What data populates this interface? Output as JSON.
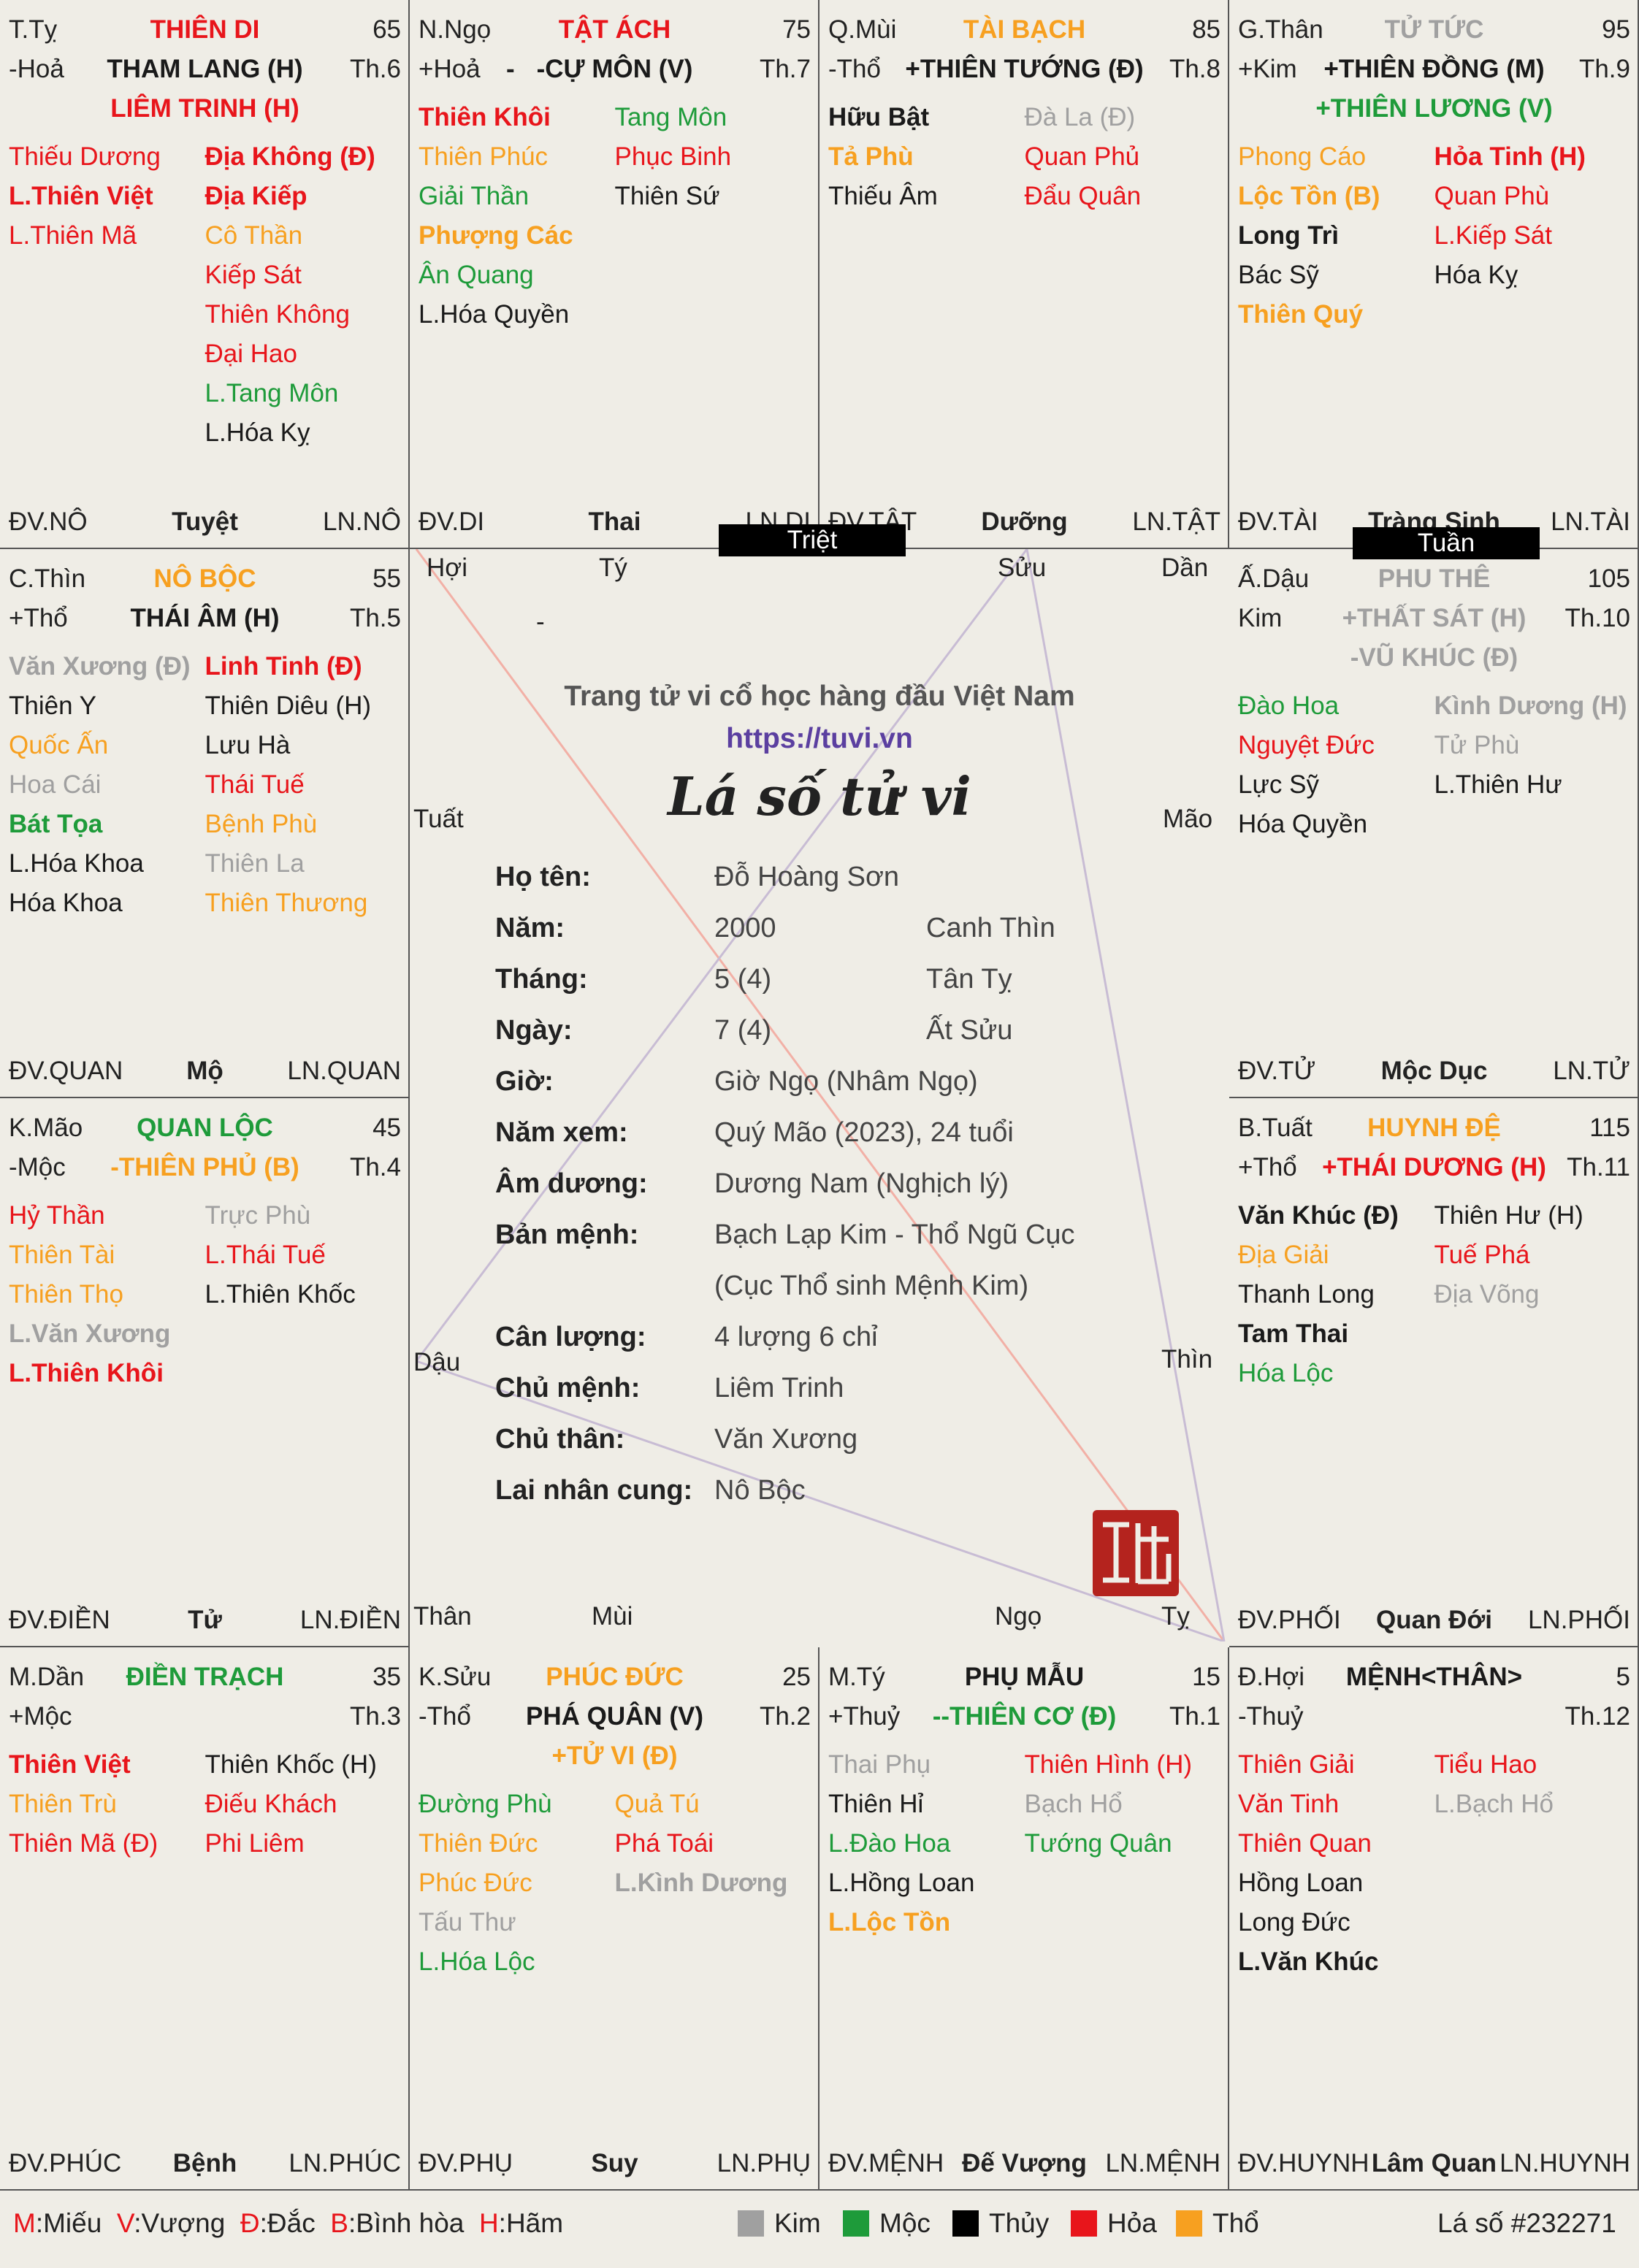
{
  "center": {
    "tagline": "Trang tử vi cổ học hàng đầu Việt Nam",
    "url": "https://tuvi.vn",
    "title": "Lá số tử vi",
    "branches": {
      "hoi": "Hợi",
      "ty_top": "Tý",
      "suu": "Sửu",
      "dan": "Dần",
      "tuat": "Tuất",
      "mao": "Mão",
      "dau": "Dậu",
      "thin": "Thìn",
      "than": "Thân",
      "mui": "Mùi",
      "ngo": "Ngọ",
      "ty_bot": "Tỵ",
      "dash": "-"
    },
    "info": [
      {
        "k": "Họ tên:",
        "v": "Đỗ Hoàng Sơn",
        "v2": ""
      },
      {
        "k": "Năm:",
        "v": "2000",
        "v2": "Canh Thìn"
      },
      {
        "k": "Tháng:",
        "v": "5 (4)",
        "v2": "Tân Tỵ"
      },
      {
        "k": "Ngày:",
        "v": "7 (4)",
        "v2": "Ất Sửu"
      },
      {
        "k": "Giờ:",
        "v": "Giờ Ngọ (Nhâm Ngọ)",
        "v2": ""
      },
      {
        "k": "Năm xem:",
        "v": "Quý Mão (2023), 24 tuổi",
        "v2": ""
      },
      {
        "k": "Âm dương:",
        "v": "Dương Nam (Nghịch lý)",
        "v2": ""
      },
      {
        "k": "Bản mệnh:",
        "v": "Bạch Lạp Kim - Thổ Ngũ Cục",
        "v2": ""
      },
      {
        "k": "",
        "v": "(Cục Thổ sinh Mệnh Kim)",
        "v2": ""
      },
      {
        "k": "Cân lượng:",
        "v": "4 lượng 6 chỉ",
        "v2": ""
      },
      {
        "k": "Chủ mệnh:",
        "v": "Liêm Trinh",
        "v2": ""
      },
      {
        "k": "Chủ thân:",
        "v": "Văn Xương",
        "v2": ""
      },
      {
        "k": "Lai nhân cung:",
        "v": "Nô Bộc",
        "v2": ""
      }
    ]
  },
  "flags": {
    "triet": "Triệt",
    "tuan": "Tuần"
  },
  "legend": {
    "m": "M",
    "m_t": ":Miếu",
    "v": "V",
    "v_t": ":Vượng",
    "d": "Đ",
    "d_t": ":Đắc",
    "bb": "B",
    "bb_t": ":Bình hòa",
    "h": "H",
    "h_t": ":Hãm",
    "kim": "Kim",
    "moc": "Mộc",
    "thuy": "Thủy",
    "hoa": "Hỏa",
    "tho": "Thổ",
    "chart_no": "Lá số #232271",
    "colors": {
      "kim": "#a0a0a0",
      "moc": "#1e9b3a",
      "thuy": "#000000",
      "hoa": "#e8151b",
      "tho": "#f7a020"
    }
  },
  "palaces": [
    {
      "id": "ty",
      "can": "T.Tỵ",
      "name": "THIÊN DI",
      "age": "65",
      "hanh": "-Hoả",
      "main": [
        "THAM LANG (H)"
      ],
      "main_c": "black",
      "sub": [
        "LIÊM TRINH (H)"
      ],
      "sub_c": "red",
      "th": "Th.6",
      "name_c": "red",
      "left": [
        [
          "Thiếu Dương",
          "red",
          0
        ],
        [
          "L.Thiên Việt",
          "red",
          1
        ],
        [
          "L.Thiên Mã",
          "red",
          0
        ]
      ],
      "right": [
        [
          "Địa Không (Đ)",
          "red",
          1
        ],
        [
          "Địa Kiếp",
          "red",
          1
        ],
        [
          "Cô Thần",
          "orange",
          0
        ],
        [
          "Kiếp Sát",
          "red",
          0
        ],
        [
          "Thiên Không",
          "red",
          0
        ],
        [
          "Đại Hao",
          "red",
          0
        ],
        [
          "L.Tang Môn",
          "green",
          0
        ],
        [
          "L.Hóa Kỵ",
          "black",
          0
        ]
      ],
      "dv": "ĐV.NÔ",
      "ts": "Tuyệt",
      "ln": "LN.NÔ"
    },
    {
      "id": "ngo",
      "can": "N.Ngọ",
      "name": "TẬT ÁCH",
      "age": "75",
      "hanh": "+Hoả",
      "main": [
        "-CỰ MÔN (V)"
      ],
      "main_c": "black",
      "sub": [],
      "sub_c": "black",
      "th": "Th.7",
      "name_c": "red",
      "dash": "-",
      "left": [
        [
          "Thiên Khôi",
          "red",
          1
        ],
        [
          "Thiên Phúc",
          "orange",
          0
        ],
        [
          "Giải Thần",
          "green",
          0
        ],
        [
          "Phượng Các",
          "orange",
          1
        ],
        [
          "Ân Quang",
          "green",
          0
        ],
        [
          "L.Hóa Quyền",
          "black",
          0
        ]
      ],
      "right": [
        [
          "Tang Môn",
          "green",
          0
        ],
        [
          "Phục Binh",
          "red",
          0
        ],
        [
          "Thiên Sứ",
          "black",
          0
        ]
      ],
      "dv": "ĐV.DI",
      "ts": "Thai",
      "ln": "LN.DI"
    },
    {
      "id": "mui",
      "can": "Q.Mùi",
      "name": "TÀI BẠCH",
      "age": "85",
      "hanh": "-Thổ",
      "main": [
        "+THIÊN TƯỚNG (Đ)"
      ],
      "main_c": "black",
      "sub": [],
      "sub_c": "black",
      "th": "Th.8",
      "name_c": "orange",
      "left": [
        [
          "Hữu Bật",
          "black",
          1
        ],
        [
          "Tả Phù",
          "orange",
          1
        ],
        [
          "Thiếu Âm",
          "black",
          0
        ]
      ],
      "right": [
        [
          "Đà La (Đ)",
          "gray",
          0
        ],
        [
          "Quan Phủ",
          "red",
          0
        ],
        [
          "Đẩu Quân",
          "red",
          0
        ]
      ],
      "dv": "ĐV.TẬT",
      "ts": "Dưỡng",
      "ln": "LN.TẬT"
    },
    {
      "id": "than",
      "can": "G.Thân",
      "name": "TỬ TỨC",
      "age": "95",
      "hanh": "+Kim",
      "main": [
        "+THIÊN ĐỒNG (M)"
      ],
      "main_c": "black",
      "sub": [
        "+THIÊN LƯƠNG (V)"
      ],
      "sub_c": "green",
      "th": "Th.9",
      "name_c": "gray",
      "left": [
        [
          "Phong Cáo",
          "orange",
          0
        ],
        [
          "Lộc Tồn (B)",
          "orange",
          1
        ],
        [
          "Long Trì",
          "black",
          1
        ],
        [
          "Bác Sỹ",
          "black",
          0
        ],
        [
          "Thiên Quý",
          "orange",
          1
        ]
      ],
      "right": [
        [
          "Hỏa Tinh (H)",
          "red",
          1
        ],
        [
          "Quan Phù",
          "red",
          0
        ],
        [
          "L.Kiếp Sát",
          "red",
          0
        ],
        [
          "Hóa Kỵ",
          "black",
          0
        ]
      ],
      "dv": "ĐV.TÀI",
      "ts": "Tràng Sinh",
      "ln": "LN.TÀI"
    },
    {
      "id": "thin",
      "can": "C.Thìn",
      "name": "NÔ BỘC",
      "age": "55",
      "hanh": "+Thổ",
      "main": [
        "THÁI ÂM (H)"
      ],
      "main_c": "black",
      "sub": [],
      "sub_c": "black",
      "th": "Th.5",
      "name_c": "orange",
      "left": [
        [
          "Văn Xương (Đ)",
          "gray",
          1
        ],
        [
          "Thiên Y",
          "black",
          0
        ],
        [
          "Quốc Ấn",
          "orange",
          0
        ],
        [
          "Hoa Cái",
          "gray",
          0
        ],
        [
          "Bát Tọa",
          "green",
          1
        ],
        [
          "L.Hóa Khoa",
          "black",
          0
        ],
        [
          "Hóa Khoa",
          "black",
          0
        ]
      ],
      "right": [
        [
          "Linh Tinh (Đ)",
          "red",
          1
        ],
        [
          "Thiên Diêu (H)",
          "black",
          0
        ],
        [
          "Lưu Hà",
          "black",
          0
        ],
        [
          "Thái Tuế",
          "red",
          0
        ],
        [
          "Bệnh Phù",
          "orange",
          0
        ],
        [
          "Thiên La",
          "gray",
          0
        ],
        [
          "Thiên Thương",
          "orange",
          0
        ]
      ],
      "dv": "ĐV.QUAN",
      "ts": "Mộ",
      "ln": "LN.QUAN"
    },
    {
      "id": "dau",
      "can": "Ấ.Dậu",
      "name": "PHU THÊ",
      "age": "105",
      "hanh": "Kim",
      "main": [
        "+THẤT SÁT (H)"
      ],
      "main_c": "gray",
      "sub": [
        "-VŨ KHÚC (Đ)"
      ],
      "sub_c": "gray",
      "th": "Th.10",
      "name_c": "gray",
      "left": [
        [
          "Đào Hoa",
          "green",
          0
        ],
        [
          "Nguyệt Đức",
          "red",
          0
        ],
        [
          "Lực Sỹ",
          "black",
          0
        ],
        [
          "Hóa Quyền",
          "black",
          0
        ]
      ],
      "right": [
        [
          "Kình Dương (H)",
          "gray",
          1
        ],
        [
          "Tử Phù",
          "gray",
          0
        ],
        [
          "L.Thiên Hư",
          "black",
          0
        ]
      ],
      "dv": "ĐV.TỬ",
      "ts": "Mộc Dục",
      "ln": "LN.TỬ"
    },
    {
      "id": "mao",
      "can": "K.Mão",
      "name": "QUAN LỘC",
      "age": "45",
      "hanh": "-Mộc",
      "main": [
        "-THIÊN PHỦ (B)"
      ],
      "main_c": "orange",
      "sub": [],
      "sub_c": "black",
      "th": "Th.4",
      "name_c": "green",
      "left": [
        [
          "Hỷ Thần",
          "red",
          0
        ],
        [
          "Thiên Tài",
          "orange",
          0
        ],
        [
          "Thiên Thọ",
          "orange",
          0
        ],
        [
          "L.Văn Xương",
          "gray",
          1
        ],
        [
          "L.Thiên Khôi",
          "red",
          1
        ]
      ],
      "right": [
        [
          "Trực Phù",
          "gray",
          0
        ],
        [
          "L.Thái Tuế",
          "red",
          0
        ],
        [
          "L.Thiên Khốc",
          "black",
          0
        ]
      ],
      "dv": "ĐV.ĐIỀN",
      "ts": "Tử",
      "ln": "LN.ĐIỀN"
    },
    {
      "id": "tuat",
      "can": "B.Tuất",
      "name": "HUYNH ĐỆ",
      "age": "115",
      "hanh": "+Thổ",
      "main": [
        "+THÁI DƯƠNG (H)"
      ],
      "main_c": "red",
      "sub": [],
      "sub_c": "black",
      "th": "Th.11",
      "name_c": "orange",
      "left": [
        [
          "Văn Khúc (Đ)",
          "black",
          1
        ],
        [
          "Địa Giải",
          "orange",
          0
        ],
        [
          "Thanh Long",
          "black",
          0
        ],
        [
          "Tam Thai",
          "black",
          1
        ],
        [
          "Hóa Lộc",
          "green",
          0
        ]
      ],
      "right": [
        [
          "Thiên Hư (H)",
          "black",
          0
        ],
        [
          "Tuế Phá",
          "red",
          0
        ],
        [
          "Địa Võng",
          "gray",
          0
        ]
      ],
      "dv": "ĐV.PHỐI",
      "ts": "Quan Đới",
      "ln": "LN.PHỐI"
    },
    {
      "id": "dan",
      "can": "M.Dần",
      "name": "ĐIỀN TRẠCH",
      "age": "35",
      "hanh": "+Mộc",
      "main": [],
      "main_c": "black",
      "sub": [],
      "sub_c": "black",
      "th": "Th.3",
      "name_c": "green",
      "left": [
        [
          "Thiên Việt",
          "red",
          1
        ],
        [
          "Thiên Trù",
          "orange",
          0
        ],
        [
          "Thiên Mã (Đ)",
          "red",
          0
        ]
      ],
      "right": [
        [
          "Thiên Khốc (H)",
          "black",
          0
        ],
        [
          "Điếu Khách",
          "red",
          0
        ],
        [
          "Phi Liêm",
          "red",
          0
        ]
      ],
      "dv": "ĐV.PHÚC",
      "ts": "Bệnh",
      "ln": "LN.PHÚC"
    },
    {
      "id": "suu",
      "can": "K.Sửu",
      "name": "PHÚC ĐỨC",
      "age": "25",
      "hanh": "-Thổ",
      "main": [
        "PHÁ QUÂN (V)"
      ],
      "main_c": "black",
      "sub": [
        "+TỬ VI (Đ)"
      ],
      "sub_c": "orange",
      "th": "Th.2",
      "name_c": "orange",
      "left": [
        [
          "Đường Phù",
          "green",
          0
        ],
        [
          "Thiên Đức",
          "orange",
          0
        ],
        [
          "Phúc Đức",
          "orange",
          0
        ],
        [
          "Tấu Thư",
          "gray",
          0
        ],
        [
          "L.Hóa Lộc",
          "green",
          0
        ]
      ],
      "right": [
        [
          "Quả Tú",
          "orange",
          0
        ],
        [
          "Phá Toái",
          "red",
          0
        ],
        [
          "L.Kình Dương",
          "gray",
          1
        ]
      ],
      "dv": "ĐV.PHỤ",
      "ts": "Suy",
      "ln": "LN.PHỤ"
    },
    {
      "id": "tyz",
      "can": "M.Tý",
      "name": "PHỤ MẪU",
      "age": "15",
      "hanh": "+Thuỷ",
      "main": [
        "--THIÊN CƠ (Đ)"
      ],
      "main_c": "green",
      "sub": [],
      "sub_c": "black",
      "th": "Th.1",
      "name_c": "black",
      "left": [
        [
          "Thai Phụ",
          "gray",
          0
        ],
        [
          "Thiên Hỉ",
          "black",
          0
        ],
        [
          "L.Đào Hoa",
          "green",
          0
        ],
        [
          "L.Hồng Loan",
          "black",
          0
        ],
        [
          "L.Lộc Tồn",
          "orange",
          1
        ]
      ],
      "right": [
        [
          "Thiên Hình (H)",
          "red",
          0
        ],
        [
          "Bạch Hổ",
          "gray",
          0
        ],
        [
          "Tướng Quân",
          "green",
          0
        ]
      ],
      "dv": "ĐV.MỆNH",
      "ts": "Đế Vượng",
      "ln": "LN.MỆNH"
    },
    {
      "id": "hoi",
      "can": "Đ.Hợi",
      "name": "MỆNH<THÂN>",
      "age": "5",
      "hanh": "-Thuỷ",
      "main": [],
      "main_c": "black",
      "sub": [],
      "sub_c": "black",
      "th": "Th.12",
      "name_c": "black",
      "left": [
        [
          "Thiên Giải",
          "red",
          0
        ],
        [
          "Văn Tinh",
          "red",
          0
        ],
        [
          "Thiên Quan",
          "red",
          0
        ],
        [
          "Hồng Loan",
          "black",
          0
        ],
        [
          "Long Đức",
          "black",
          0
        ],
        [
          "L.Văn Khúc",
          "black",
          1
        ]
      ],
      "right": [
        [
          "Tiểu Hao",
          "red",
          0
        ],
        [
          "L.Bạch Hổ",
          "gray",
          0
        ]
      ],
      "dv": "ĐV.HUYNH",
      "ts": "Lâm Quan",
      "ln": "LN.HUYNH"
    }
  ]
}
